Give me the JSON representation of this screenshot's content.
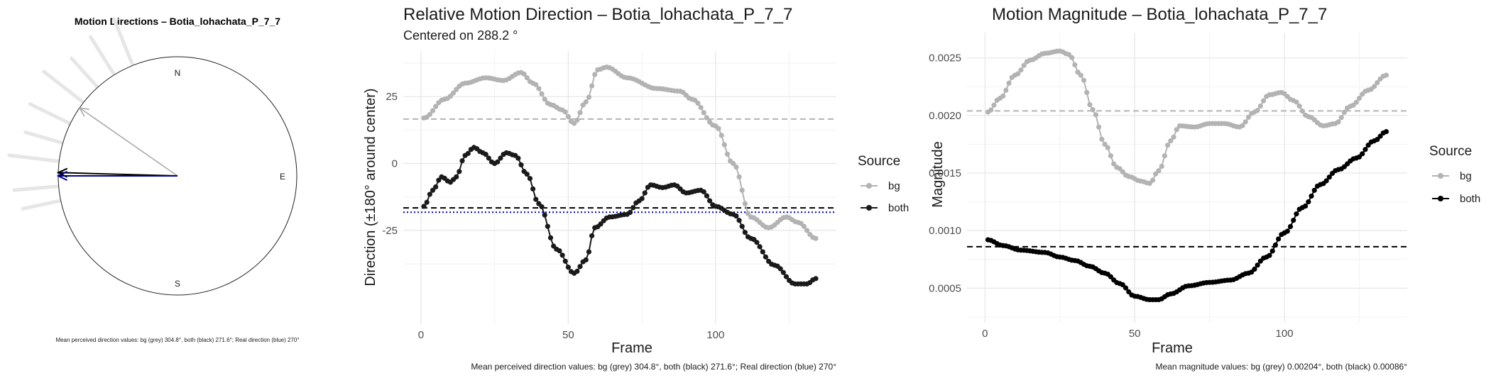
{
  "chart_data": [
    {
      "type": "polar",
      "title": "Motion Directions – Botia_lohachata_P_7_7",
      "compass_labels": {
        "north": "N",
        "east": "E",
        "south": "S"
      },
      "arrows": [
        {
          "name": "bg",
          "angle_deg": 304.8,
          "color": "#aaaaaa"
        },
        {
          "name": "both",
          "angle_deg": 271.6,
          "color": "#000000"
        },
        {
          "name": "real",
          "angle_deg": 270,
          "color": "#00008b"
        }
      ],
      "caption": "Mean perceived direction values: bg (grey) 304.8°, both (black) 271.6°; Real direction (blue) 270°"
    },
    {
      "type": "line",
      "title": "Relative Motion Direction – Botia_lohachata_P_7_7",
      "subtitle": "Centered on  288.2 °",
      "xlabel": "Frame",
      "ylabel": "Direction (±180° around center)",
      "xlim": [
        -6,
        141
      ],
      "ylim": [
        -60,
        42
      ],
      "xticks": [
        0,
        50,
        100
      ],
      "yticks": [
        25,
        0,
        -25
      ],
      "ytick_labels": [
        "25",
        "0",
        "-25"
      ],
      "series": [
        {
          "name": "bg",
          "color": "#b3b3b3",
          "knots": [
            [
              1,
              17
            ],
            [
              8,
              24
            ],
            [
              15,
              30
            ],
            [
              22,
              32
            ],
            [
              28,
              31
            ],
            [
              34,
              34
            ],
            [
              38,
              30
            ],
            [
              44,
              22
            ],
            [
              48,
              20
            ],
            [
              52,
              15
            ],
            [
              56,
              23
            ],
            [
              60,
              35
            ],
            [
              63,
              36
            ],
            [
              70,
              32
            ],
            [
              80,
              28
            ],
            [
              88,
              27
            ],
            [
              92,
              24
            ],
            [
              100,
              14
            ],
            [
              106,
              0
            ],
            [
              112,
              -20
            ],
            [
              118,
              -24
            ],
            [
              124,
              -20
            ],
            [
              128,
              -22
            ],
            [
              134,
              -28
            ]
          ]
        },
        {
          "name": "both",
          "color": "#1a1a1a",
          "knots": [
            [
              1,
              -16
            ],
            [
              4,
              -10
            ],
            [
              7,
              -5
            ],
            [
              10,
              -7
            ],
            [
              12,
              -5
            ],
            [
              15,
              3
            ],
            [
              18,
              6
            ],
            [
              21,
              4
            ],
            [
              25,
              0
            ],
            [
              29,
              4
            ],
            [
              32,
              3
            ],
            [
              36,
              -4
            ],
            [
              40,
              -15
            ],
            [
              46,
              -32
            ],
            [
              52,
              -41
            ],
            [
              56,
              -36
            ],
            [
              59,
              -24
            ],
            [
              64,
              -20
            ],
            [
              70,
              -19
            ],
            [
              74,
              -14
            ],
            [
              78,
              -8
            ],
            [
              82,
              -9
            ],
            [
              86,
              -8
            ],
            [
              90,
              -11
            ],
            [
              95,
              -10
            ],
            [
              100,
              -16
            ],
            [
              106,
              -19
            ],
            [
              112,
              -28
            ],
            [
              120,
              -38
            ],
            [
              127,
              -45
            ],
            [
              131,
              -45
            ],
            [
              134,
              -43
            ]
          ]
        }
      ],
      "hlines": [
        {
          "name": "bg-mean",
          "y": 16.6,
          "color": "#b3b3b3",
          "style": "dashed"
        },
        {
          "name": "both-mean",
          "y": -16.6,
          "color": "#000000",
          "style": "dashed"
        },
        {
          "name": "real-direction",
          "y": -18.2,
          "color": "#0000cd",
          "style": "dotted"
        }
      ],
      "legend": {
        "title": "Source",
        "items": [
          "bg",
          "both"
        ]
      },
      "caption": "Mean perceived direction values: bg (grey) 304.8°, both (black) 271.6°; Real direction (blue) 270°"
    },
    {
      "type": "line",
      "title": "Motion Magnitude – Botia_lohachata_P_7_7",
      "xlabel": "Frame",
      "ylabel": "Magnitude",
      "xlim": [
        -6,
        141
      ],
      "ylim": [
        0.0002,
        0.00272
      ],
      "xticks": [
        0,
        50,
        100
      ],
      "yticks": [
        0.0025,
        0.002,
        0.0015,
        0.001,
        0.0005
      ],
      "ytick_labels": [
        "0.0025",
        "0.0020",
        "0.0015",
        "0.0010",
        "0.0005"
      ],
      "series": [
        {
          "name": "bg",
          "color": "#b3b3b3",
          "knots": [
            [
              1,
              0.00203
            ],
            [
              5,
              0.00215
            ],
            [
              10,
              0.00235
            ],
            [
              15,
              0.00248
            ],
            [
              20,
              0.00254
            ],
            [
              25,
              0.00256
            ],
            [
              28,
              0.00253
            ],
            [
              32,
              0.00235
            ],
            [
              36,
              0.00205
            ],
            [
              40,
              0.00175
            ],
            [
              44,
              0.00155
            ],
            [
              48,
              0.00147
            ],
            [
              52,
              0.00143
            ],
            [
              55,
              0.00141
            ],
            [
              58,
              0.00152
            ],
            [
              62,
              0.00178
            ],
            [
              65,
              0.00191
            ],
            [
              70,
              0.0019
            ],
            [
              75,
              0.00193
            ],
            [
              80,
              0.00193
            ],
            [
              85,
              0.0019
            ],
            [
              90,
              0.00203
            ],
            [
              95,
              0.00218
            ],
            [
              99,
              0.0022
            ],
            [
              103,
              0.00213
            ],
            [
              108,
              0.00199
            ],
            [
              113,
              0.00191
            ],
            [
              117,
              0.00193
            ],
            [
              122,
              0.00208
            ],
            [
              128,
              0.00222
            ],
            [
              134,
              0.00235
            ]
          ]
        },
        {
          "name": "both",
          "color": "#000000",
          "knots": [
            [
              1,
              0.00092
            ],
            [
              6,
              0.00087
            ],
            [
              12,
              0.00083
            ],
            [
              20,
              0.00081
            ],
            [
              25,
              0.00077
            ],
            [
              30,
              0.00074
            ],
            [
              35,
              0.00069
            ],
            [
              40,
              0.00063
            ],
            [
              45,
              0.00054
            ],
            [
              50,
              0.00043
            ],
            [
              55,
              0.0004
            ],
            [
              58,
              0.0004
            ],
            [
              62,
              0.00045
            ],
            [
              68,
              0.00052
            ],
            [
              75,
              0.00055
            ],
            [
              82,
              0.00057
            ],
            [
              88,
              0.00063
            ],
            [
              94,
              0.00077
            ],
            [
              100,
              0.00098
            ],
            [
              106,
              0.0012
            ],
            [
              112,
              0.0014
            ],
            [
              118,
              0.00153
            ],
            [
              124,
              0.00163
            ],
            [
              130,
              0.00178
            ],
            [
              134,
              0.00186
            ]
          ]
        }
      ],
      "hlines": [
        {
          "name": "bg-mean",
          "y": 0.00204,
          "color": "#b3b3b3",
          "style": "dashed"
        },
        {
          "name": "both-mean",
          "y": 0.00086,
          "color": "#000000",
          "style": "dashed"
        }
      ],
      "legend": {
        "title": "Source",
        "items": [
          "bg",
          "both"
        ]
      },
      "caption": "Mean magnitude values: bg (grey) 0.00204°, both (black) 0.00086°"
    }
  ]
}
